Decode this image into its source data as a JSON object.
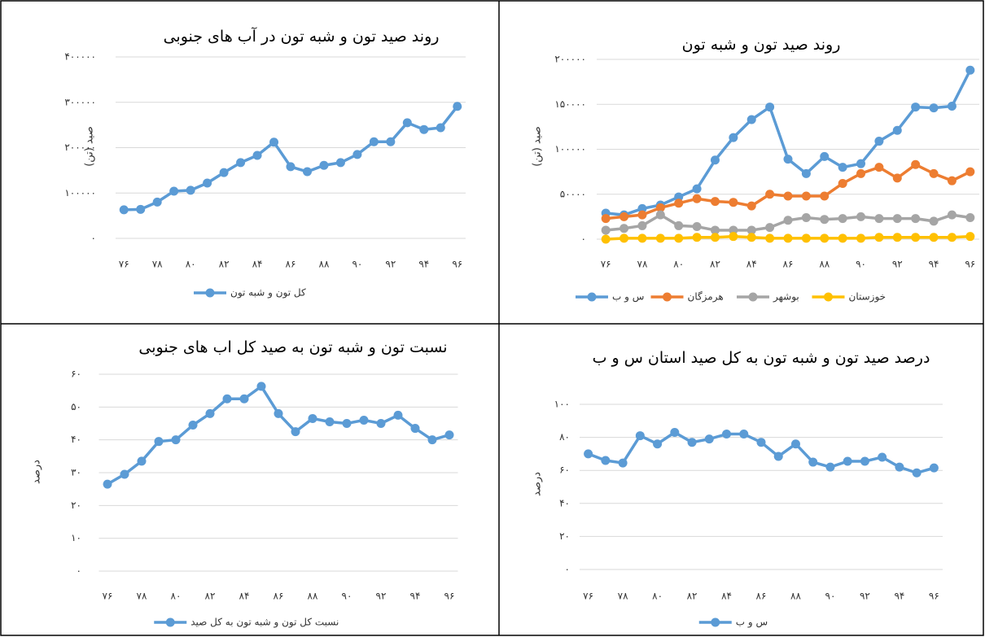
{
  "chart_data": [
    {
      "type": "line",
      "title": "روند صید تون و شبه تون در آب های جنوبی",
      "y_label": "صید (تن)",
      "categories": [
        "۷۶",
        null,
        "۷۸",
        null,
        "۸۰",
        null,
        "۸۲",
        null,
        "۸۴",
        null,
        "۸۶",
        null,
        "۸۸",
        null,
        "۹۰",
        null,
        "۹۲",
        null,
        "۹۴",
        null,
        "۹۶"
      ],
      "series": [
        {
          "name": "کل تون و شبه تون",
          "color": "#5b9bd5",
          "values": [
            63000,
            64000,
            80000,
            104000,
            106000,
            122000,
            145000,
            167000,
            183000,
            212000,
            158000,
            147000,
            161000,
            167000,
            185000,
            213000,
            213000,
            255000,
            240000,
            244000,
            291000
          ]
        }
      ],
      "ylim": [
        0,
        400000
      ],
      "yticks": [
        {
          "value": 0,
          "label": "۰"
        },
        {
          "value": 100000,
          "label": "۱۰۰۰۰۰"
        },
        {
          "value": 200000,
          "label": "۲۰۰۰۰۰"
        },
        {
          "value": 300000,
          "label": "۳۰۰۰۰۰"
        },
        {
          "value": 400000,
          "label": "۴۰۰۰۰۰"
        }
      ],
      "grid": true,
      "legend": "bottom"
    },
    {
      "type": "line",
      "title": "روند صید تون و شبه تون",
      "y_label": "صید (تن)",
      "categories": [
        "۷۶",
        null,
        "۷۸",
        null,
        "۸۰",
        null,
        "۸۲",
        null,
        "۸۴",
        null,
        "۸۶",
        null,
        "۸۸",
        null,
        "۹۰",
        null,
        "۹۲",
        null,
        "۹۴",
        null,
        "۹۶"
      ],
      "series": [
        {
          "name": "س و ب",
          "color": "#5b9bd5",
          "values": [
            29000,
            27000,
            34000,
            38000,
            47000,
            56000,
            88000,
            113000,
            133000,
            147000,
            89000,
            73000,
            92000,
            80000,
            84000,
            109000,
            121000,
            147000,
            146000,
            148000,
            188000
          ]
        },
        {
          "name": "هرمزگان",
          "color": "#ed7d31",
          "values": [
            23000,
            25000,
            27000,
            35000,
            40000,
            45000,
            42000,
            41000,
            37000,
            50000,
            48000,
            48000,
            48000,
            62000,
            73000,
            80000,
            68000,
            83000,
            73000,
            65000,
            75000
          ]
        },
        {
          "name": "بوشهر",
          "color": "#a5a5a5",
          "values": [
            10000,
            12000,
            15000,
            27000,
            15000,
            14000,
            10000,
            10000,
            10000,
            13000,
            21000,
            24000,
            22000,
            23000,
            25000,
            23000,
            23000,
            23000,
            20000,
            27000,
            24000
          ]
        },
        {
          "name": "خوزستان",
          "color": "#ffc000",
          "values": [
            0,
            1000,
            1000,
            1000,
            1000,
            2000,
            2000,
            3000,
            2000,
            1000,
            1000,
            1000,
            1000,
            1000,
            1000,
            2000,
            2000,
            2000,
            2000,
            2000,
            3000
          ]
        }
      ],
      "ylim": [
        0,
        200000
      ],
      "yticks": [
        {
          "value": 0,
          "label": "۰"
        },
        {
          "value": 50000,
          "label": "۵۰۰۰۰"
        },
        {
          "value": 100000,
          "label": "۱۰۰۰۰۰"
        },
        {
          "value": 150000,
          "label": "۱۵۰۰۰۰"
        },
        {
          "value": 200000,
          "label": "۲۰۰۰۰۰"
        }
      ],
      "grid": true,
      "legend": "bottom"
    },
    {
      "type": "line",
      "title": "نسبت تون و شبه تون به صید کل اب های جنوبی",
      "y_label": "درصد",
      "categories": [
        "۷۶",
        null,
        "۷۸",
        null,
        "۸۰",
        null,
        "۸۲",
        null,
        "۸۴",
        null,
        "۸۶",
        null,
        "۸۸",
        null,
        "۹۰",
        null,
        "۹۲",
        null,
        "۹۴",
        null,
        "۹۶"
      ],
      "series": [
        {
          "name": "نسبت کل تون و شبه تون به کل صید",
          "color": "#5b9bd5",
          "values": [
            26.5,
            29.5,
            33.5,
            39.5,
            40,
            44.5,
            48,
            52.5,
            52.5,
            56.3,
            48,
            42.5,
            46.5,
            45.5,
            45,
            46,
            45,
            47.5,
            43.5,
            40,
            41.5
          ]
        }
      ],
      "ylim": [
        0,
        60
      ],
      "yticks": [
        {
          "value": 0,
          "label": "۰"
        },
        {
          "value": 10,
          "label": "۱۰"
        },
        {
          "value": 20,
          "label": "۲۰"
        },
        {
          "value": 30,
          "label": "۳۰"
        },
        {
          "value": 40,
          "label": "۴۰"
        },
        {
          "value": 50,
          "label": "۵۰"
        },
        {
          "value": 60,
          "label": "۶۰"
        }
      ],
      "grid": true,
      "legend": "bottom"
    },
    {
      "type": "line",
      "title": "درصد صید تون و شبه تون به کل صید استان س و ب",
      "y_label": "درصد",
      "categories": [
        "۷۶",
        null,
        "۷۸",
        null,
        "۸۰",
        null,
        "۸۲",
        null,
        "۸۴",
        null,
        "۸۶",
        null,
        "۸۸",
        null,
        "۹۰",
        null,
        "۹۲",
        null,
        "۹۴",
        null,
        "۹۶"
      ],
      "series": [
        {
          "name": "س و ب",
          "color": "#5b9bd5",
          "values": [
            70,
            66,
            64.5,
            81,
            76,
            83,
            77,
            79,
            82,
            82,
            77,
            68.5,
            76,
            65,
            62,
            65.5,
            65.5,
            68,
            62,
            58.5,
            61.5
          ]
        }
      ],
      "ylim": [
        0,
        100
      ],
      "yticks": [
        {
          "value": 0,
          "label": "۰"
        },
        {
          "value": 20,
          "label": "۲۰"
        },
        {
          "value": 40,
          "label": "۴۰"
        },
        {
          "value": 60,
          "label": "۶۰"
        },
        {
          "value": 80,
          "label": "۸۰"
        },
        {
          "value": 100,
          "label": "۱۰۰"
        }
      ],
      "grid": true,
      "legend": "bottom"
    }
  ]
}
